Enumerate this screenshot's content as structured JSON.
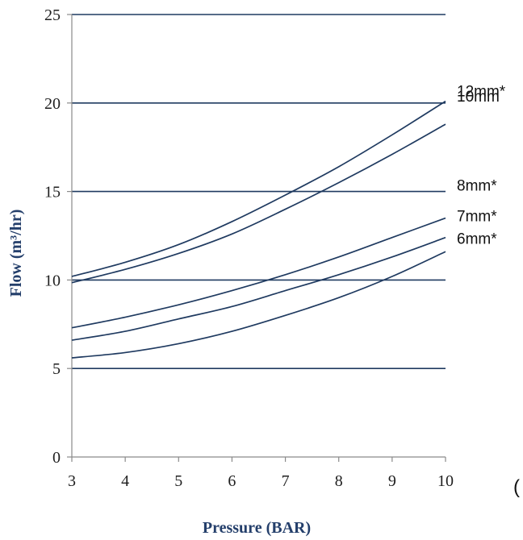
{
  "chart_data": {
    "type": "line",
    "title": "",
    "xlabel": "Pressure (BAR)",
    "ylabel": "Flow (m³/hr)",
    "xlim": [
      3,
      10
    ],
    "ylim": [
      0,
      25
    ],
    "x_ticks": [
      3,
      4,
      5,
      6,
      7,
      8,
      9,
      10
    ],
    "y_ticks": [
      0,
      5,
      10,
      15,
      20,
      25
    ],
    "grid": "horizontal",
    "legend": "none",
    "line_color": "#1f3a60",
    "grid_color": "#1f3a60",
    "axis_title_color": "#243f6b",
    "series": [
      {
        "name": "12mm*",
        "x": [
          3,
          4,
          5,
          6,
          7,
          8,
          9,
          10
        ],
        "y": [
          10.2,
          11.0,
          12.0,
          13.3,
          14.8,
          16.4,
          18.2,
          20.1
        ]
      },
      {
        "name": "10mm",
        "x": [
          3,
          4,
          5,
          6,
          7,
          8,
          9,
          10
        ],
        "y": [
          9.85,
          10.6,
          11.5,
          12.6,
          14.0,
          15.5,
          17.1,
          18.8
        ]
      },
      {
        "name": "8mm*",
        "x": [
          3,
          4,
          5,
          6,
          7,
          8,
          9,
          10
        ],
        "y": [
          7.3,
          7.9,
          8.6,
          9.4,
          10.3,
          11.3,
          12.4,
          13.5
        ]
      },
      {
        "name": "7mm*",
        "x": [
          3,
          4,
          5,
          6,
          7,
          8,
          9,
          10
        ],
        "y": [
          6.6,
          7.1,
          7.8,
          8.5,
          9.4,
          10.3,
          11.3,
          12.4
        ]
      },
      {
        "name": "6mm*",
        "x": [
          3,
          4,
          5,
          6,
          7,
          8,
          9,
          10
        ],
        "y": [
          5.6,
          5.9,
          6.4,
          7.1,
          8.0,
          9.0,
          10.2,
          11.6
        ]
      }
    ]
  },
  "stray_glyph": "("
}
